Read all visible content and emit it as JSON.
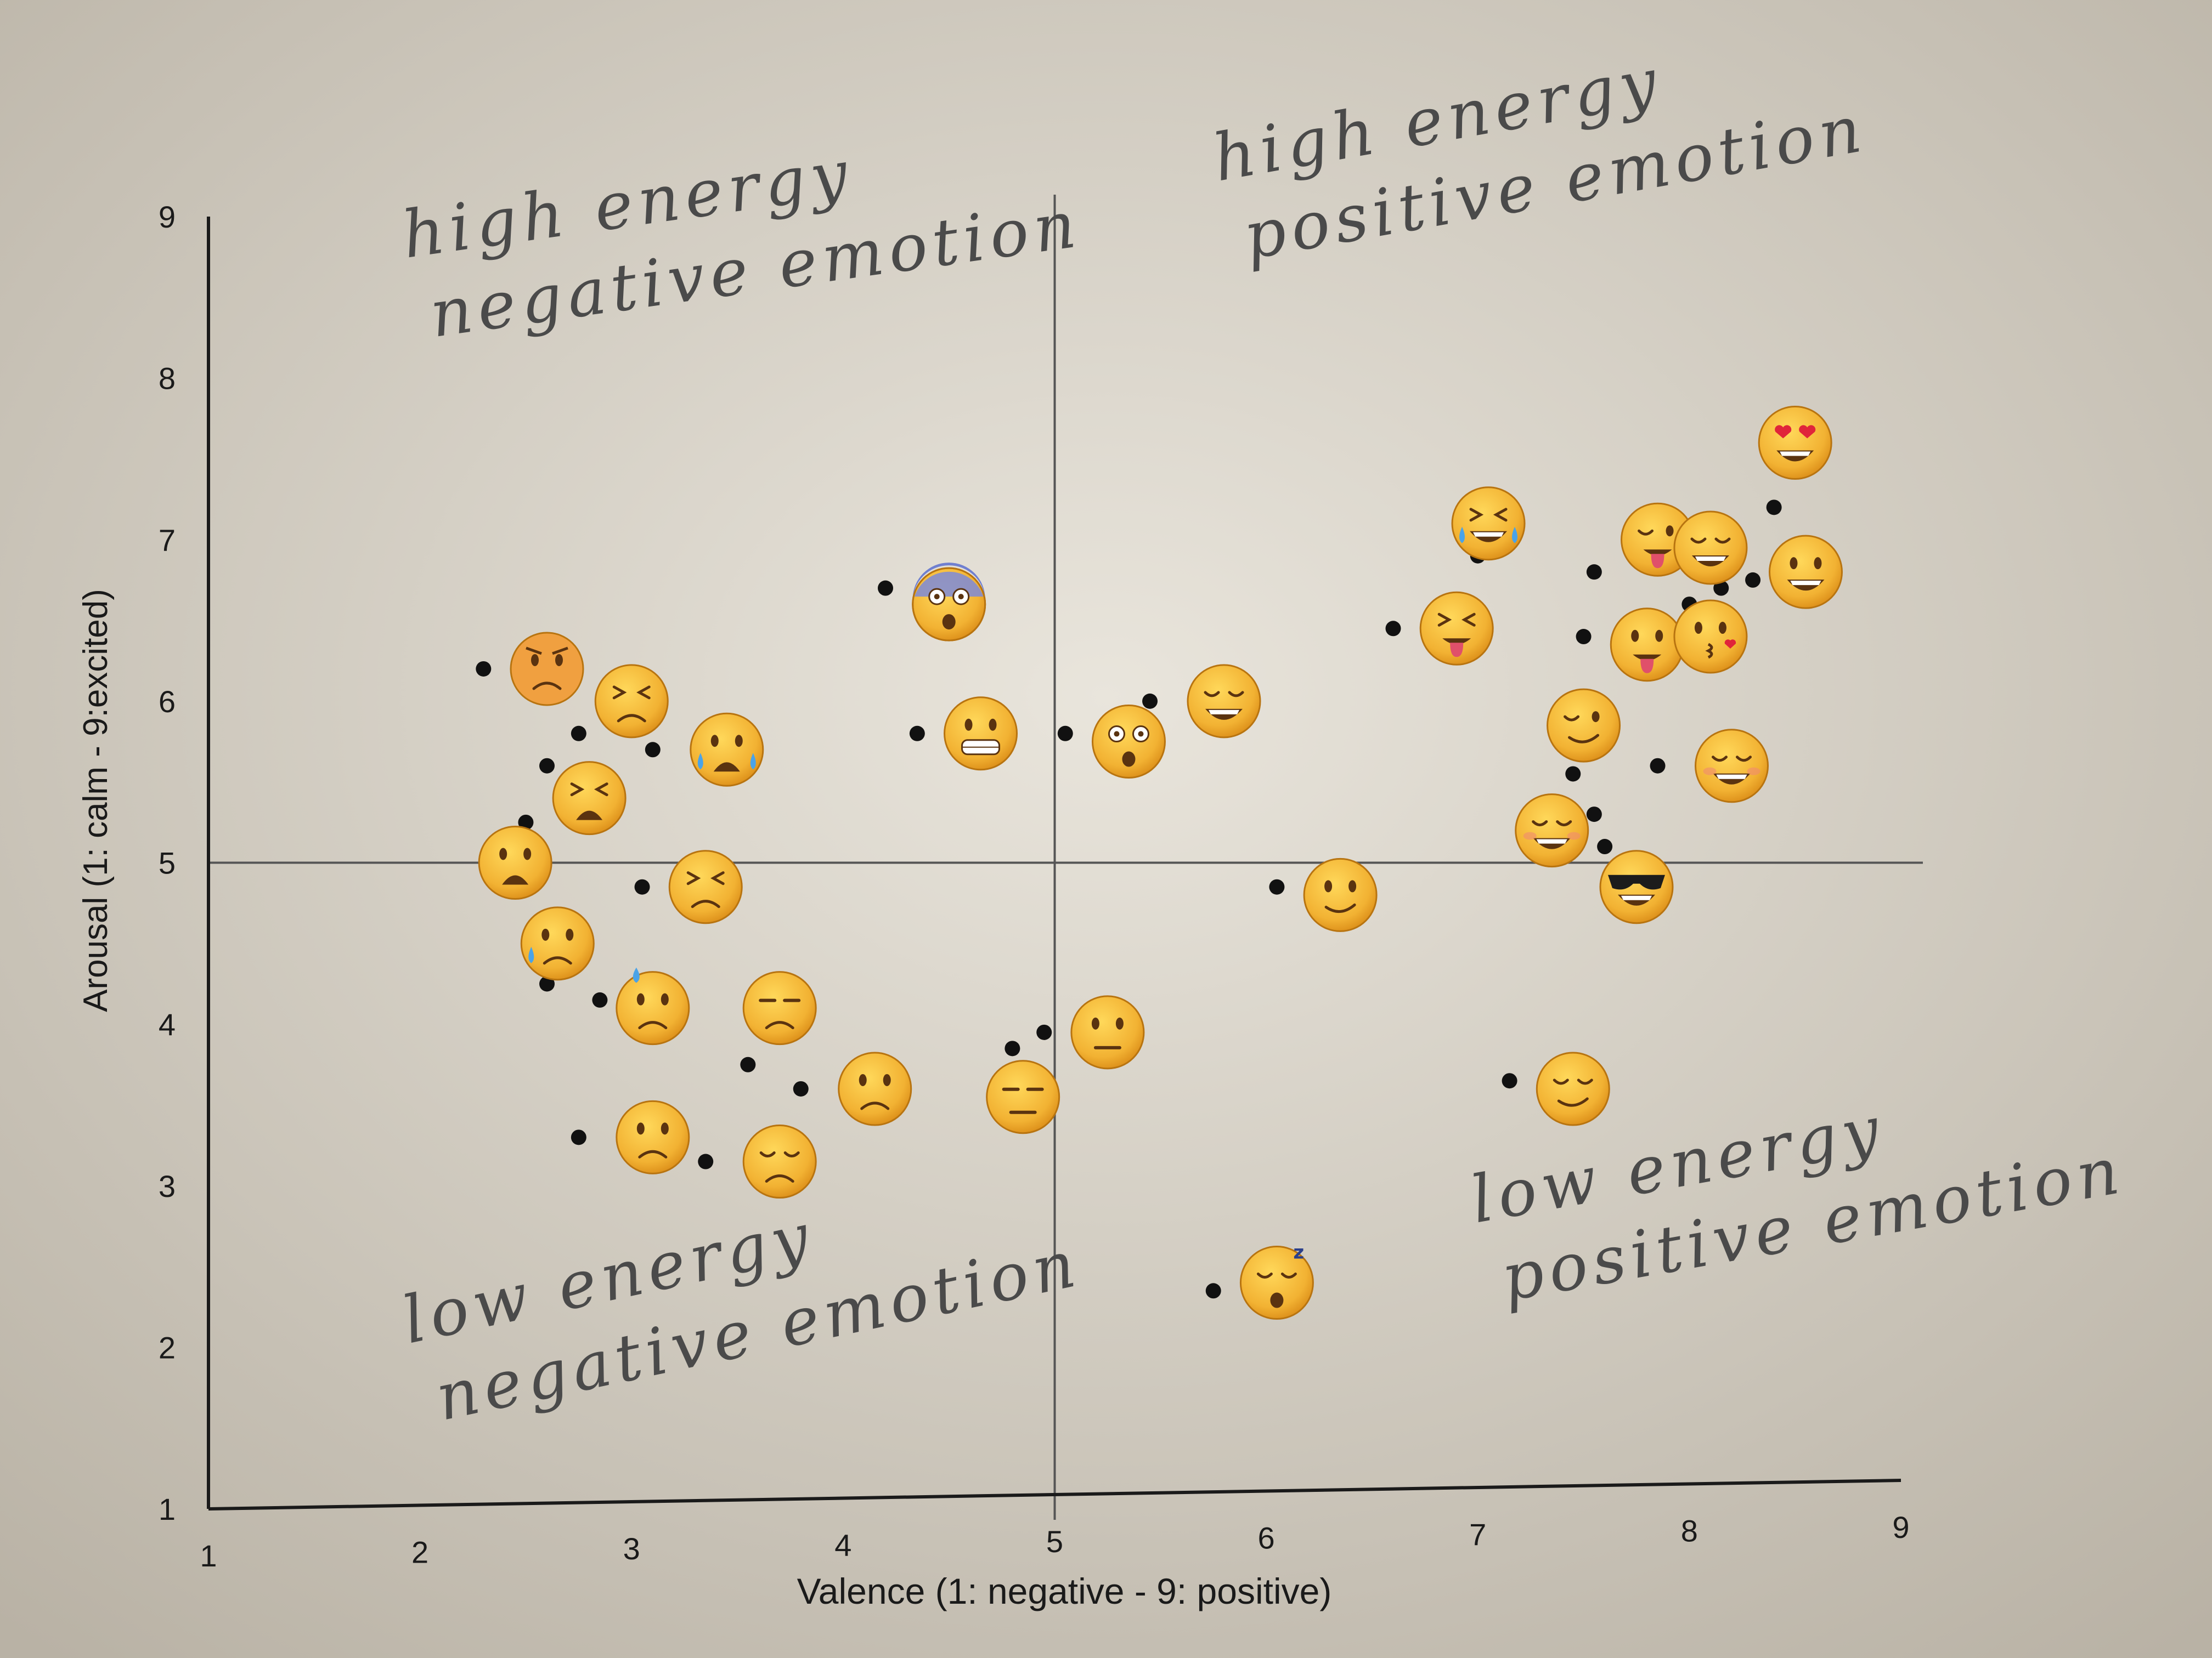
{
  "colors": {
    "paper_light": "#e9e5dc",
    "paper_dark": "#b9b2a5",
    "axis": "#1a1a1a",
    "guide": "#555555",
    "dot": "#111111",
    "ink": "#4a4a4a",
    "emoji_face": "#f2b233",
    "emoji_face_dark": "#d98a16"
  },
  "chart_data": {
    "type": "scatter",
    "title": "",
    "xlabel": "Valence (1: negative - 9: positive)",
    "ylabel": "Arousal (1: calm - 9:excited)",
    "xlim": [
      1,
      9
    ],
    "ylim": [
      1,
      9
    ],
    "xticks": [
      "1",
      "2",
      "3",
      "4",
      "5",
      "6",
      "7",
      "8",
      "9"
    ],
    "yticks": [
      "1",
      "2",
      "3",
      "4",
      "5",
      "6",
      "7",
      "8",
      "9"
    ],
    "divider_x": 5,
    "divider_y": 5,
    "grid": false,
    "quadrant_labels": [
      {
        "lines": [
          "high energy",
          "negative emotion"
        ],
        "quadrant": "top-left"
      },
      {
        "lines": [
          "high energy",
          "positive emotion"
        ],
        "quadrant": "top-right"
      },
      {
        "lines": [
          "low energy",
          "negative emotion"
        ],
        "quadrant": "bottom-left"
      },
      {
        "lines": [
          "low energy",
          "positive emotion"
        ],
        "quadrant": "bottom-right"
      }
    ],
    "points": [
      {
        "x": 2.3,
        "y": 6.2
      },
      {
        "x": 2.5,
        "y": 5.25
      },
      {
        "x": 2.6,
        "y": 5.6
      },
      {
        "x": 2.75,
        "y": 5.8
      },
      {
        "x": 3.1,
        "y": 5.7
      },
      {
        "x": 3.05,
        "y": 4.85
      },
      {
        "x": 2.6,
        "y": 4.25
      },
      {
        "x": 2.85,
        "y": 4.15
      },
      {
        "x": 3.55,
        "y": 3.75
      },
      {
        "x": 3.8,
        "y": 3.6
      },
      {
        "x": 2.75,
        "y": 3.3
      },
      {
        "x": 3.35,
        "y": 3.15
      },
      {
        "x": 4.2,
        "y": 6.7
      },
      {
        "x": 4.35,
        "y": 5.8
      },
      {
        "x": 4.8,
        "y": 3.85
      },
      {
        "x": 4.95,
        "y": 3.95
      },
      {
        "x": 5.05,
        "y": 5.8
      },
      {
        "x": 5.45,
        "y": 6.0
      },
      {
        "x": 6.05,
        "y": 4.85
      },
      {
        "x": 5.75,
        "y": 2.35
      },
      {
        "x": 6.6,
        "y": 6.45
      },
      {
        "x": 7.0,
        "y": 6.9
      },
      {
        "x": 7.15,
        "y": 3.65
      },
      {
        "x": 7.45,
        "y": 5.55
      },
      {
        "x": 7.55,
        "y": 5.3
      },
      {
        "x": 7.6,
        "y": 5.1
      },
      {
        "x": 7.5,
        "y": 6.4
      },
      {
        "x": 7.55,
        "y": 6.8
      },
      {
        "x": 7.85,
        "y": 5.6
      },
      {
        "x": 8.0,
        "y": 6.6
      },
      {
        "x": 8.15,
        "y": 6.7
      },
      {
        "x": 8.3,
        "y": 6.75
      },
      {
        "x": 8.4,
        "y": 7.2
      }
    ],
    "emojis": [
      {
        "name": "angry-face-icon",
        "x": 2.6,
        "y": 6.2
      },
      {
        "name": "confounded-face-icon",
        "x": 3.0,
        "y": 6.0
      },
      {
        "name": "loudly-crying-face-icon",
        "x": 3.45,
        "y": 5.7
      },
      {
        "name": "tired-face-icon",
        "x": 2.8,
        "y": 5.4
      },
      {
        "name": "weary-face-icon",
        "x": 2.45,
        "y": 5.0
      },
      {
        "name": "persevering-face-icon",
        "x": 3.35,
        "y": 4.85
      },
      {
        "name": "crying-face-icon",
        "x": 2.65,
        "y": 4.5
      },
      {
        "name": "downcast-sweat-face-icon",
        "x": 3.1,
        "y": 4.1
      },
      {
        "name": "unamused-face-icon",
        "x": 3.7,
        "y": 4.1
      },
      {
        "name": "confused-face-icon",
        "x": 4.15,
        "y": 3.6
      },
      {
        "name": "disappointed-face-icon",
        "x": 3.1,
        "y": 3.3
      },
      {
        "name": "pensive-face-icon",
        "x": 3.7,
        "y": 3.15
      },
      {
        "name": "screaming-face-icon",
        "x": 4.5,
        "y": 6.6
      },
      {
        "name": "grimacing-face-icon",
        "x": 4.65,
        "y": 5.8
      },
      {
        "name": "expressionless-face-icon",
        "x": 4.85,
        "y": 3.55
      },
      {
        "name": "neutral-face-icon",
        "x": 5.25,
        "y": 3.95
      },
      {
        "name": "flushed-face-icon",
        "x": 5.35,
        "y": 5.75
      },
      {
        "name": "beaming-face-icon",
        "x": 5.8,
        "y": 6.0
      },
      {
        "name": "smirking-face-icon",
        "x": 6.35,
        "y": 4.8
      },
      {
        "name": "sleeping-face-icon",
        "x": 6.05,
        "y": 2.4
      },
      {
        "name": "joy-face-icon",
        "x": 7.05,
        "y": 7.1
      },
      {
        "name": "squinting-tongue-face-icon",
        "x": 6.9,
        "y": 6.45
      },
      {
        "name": "winking-tongue-face-icon",
        "x": 7.85,
        "y": 7.0
      },
      {
        "name": "grinning-smile-face-icon",
        "x": 8.1,
        "y": 6.95
      },
      {
        "name": "heart-eyes-face-icon",
        "x": 8.5,
        "y": 7.6
      },
      {
        "name": "grinning-face-icon",
        "x": 8.55,
        "y": 6.8
      },
      {
        "name": "tongue-out-face-icon",
        "x": 7.8,
        "y": 6.35
      },
      {
        "name": "kissing-heart-face-icon",
        "x": 8.1,
        "y": 6.4
      },
      {
        "name": "winking-face-icon",
        "x": 7.5,
        "y": 5.85
      },
      {
        "name": "smiling-face-icon",
        "x": 8.2,
        "y": 5.6
      },
      {
        "name": "blushing-face-icon",
        "x": 7.35,
        "y": 5.2
      },
      {
        "name": "sunglasses-face-icon",
        "x": 7.75,
        "y": 4.85
      },
      {
        "name": "relieved-face-icon",
        "x": 7.45,
        "y": 3.6
      }
    ]
  }
}
